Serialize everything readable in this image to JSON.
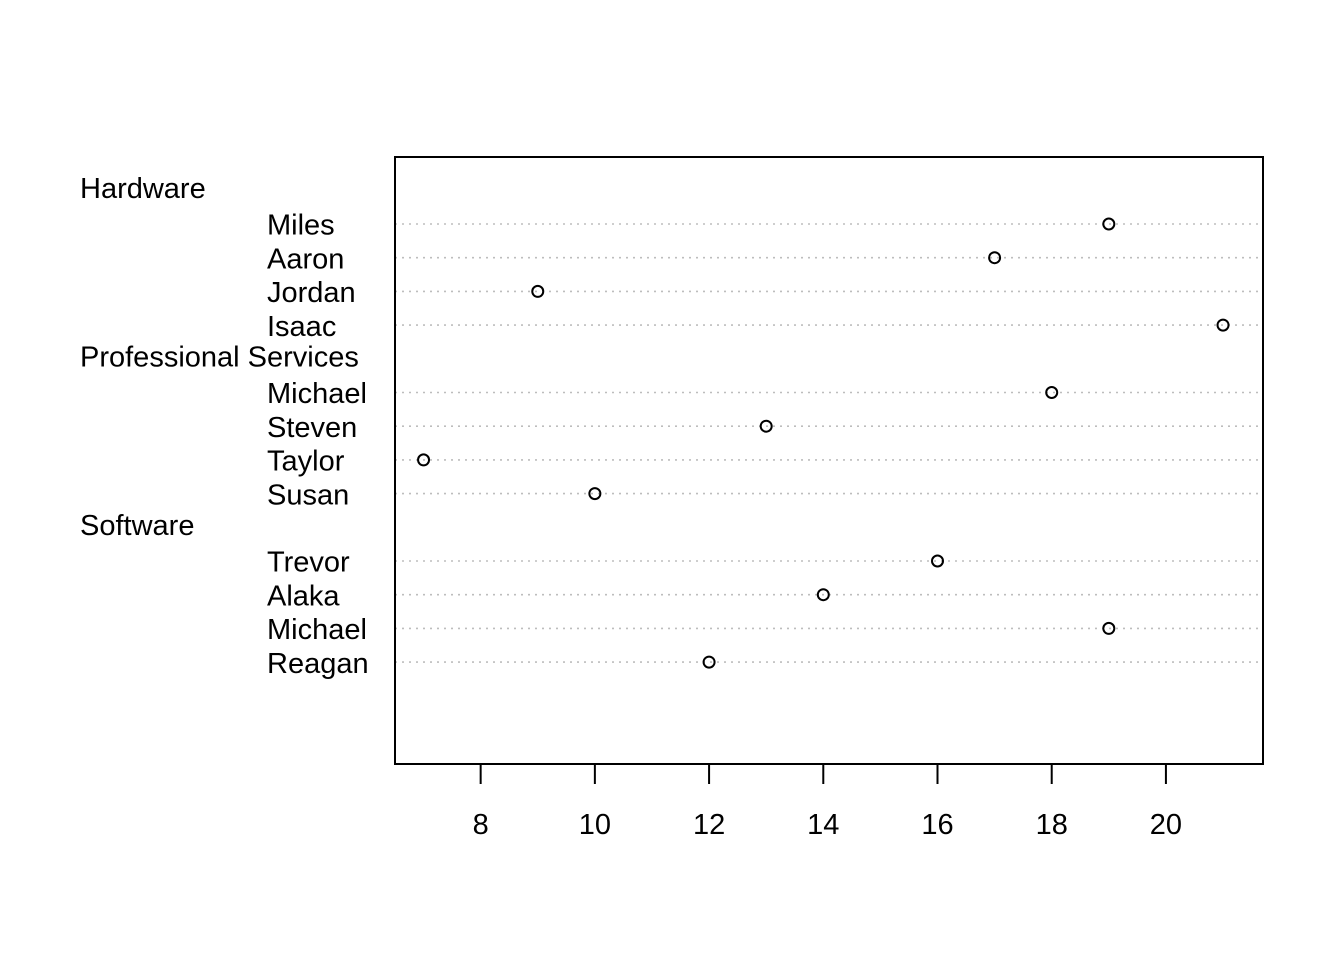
{
  "chart_data": {
    "type": "scatter",
    "subtype": "grouped-dotchart",
    "title": "",
    "xlabel": "",
    "ylabel": "",
    "xlim": [
      6.5,
      21.7
    ],
    "x_ticks": [
      8,
      10,
      12,
      14,
      16,
      18,
      20
    ],
    "grid": "horizontal dotted guide lines",
    "groups": [
      {
        "name": "Hardware",
        "items": [
          {
            "label": "Miles",
            "value": 19
          },
          {
            "label": "Aaron",
            "value": 17
          },
          {
            "label": "Jordan",
            "value": 9
          },
          {
            "label": "Isaac",
            "value": 21
          }
        ]
      },
      {
        "name": "Professional Services",
        "items": [
          {
            "label": "Michael",
            "value": 18
          },
          {
            "label": "Steven",
            "value": 13
          },
          {
            "label": "Taylor",
            "value": 7
          },
          {
            "label": "Susan",
            "value": 10
          }
        ]
      },
      {
        "name": "Software",
        "items": [
          {
            "label": "Trevor",
            "value": 16
          },
          {
            "label": "Alaka",
            "value": 14
          },
          {
            "label": "Michael",
            "value": 19
          },
          {
            "label": "Reagan",
            "value": 12
          }
        ]
      }
    ]
  }
}
